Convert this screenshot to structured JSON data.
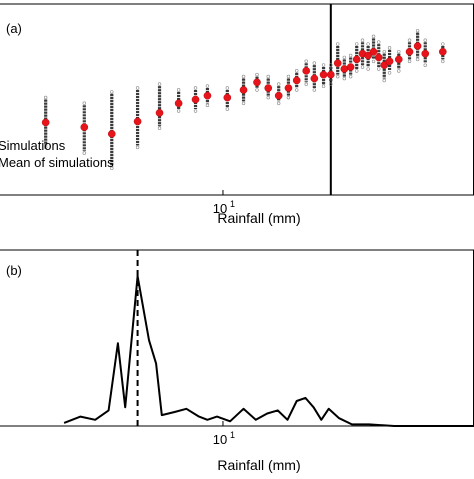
{
  "chart_data": [
    {
      "type": "scatter",
      "panel_label": "(a)",
      "xlabel": "Rainfall (mm)",
      "x_scale": "log",
      "xlim": [
        2.2,
        55
      ],
      "x_ticks": [
        {
          "value": 10,
          "base": "10",
          "exp": "1"
        }
      ],
      "ylim": [
        0,
        1
      ],
      "vline": {
        "x": 20.8,
        "style": "solid"
      },
      "legend": {
        "placement": "left",
        "entries": [
          "Simulations",
          "Mean of simulations"
        ]
      },
      "series": [
        {
          "name": "Mean of simulations",
          "color": "#e8141b",
          "points": [
            {
              "x": 3.0,
              "y": 0.38,
              "lo": 0.26,
              "hi": 0.5
            },
            {
              "x": 3.9,
              "y": 0.355,
              "lo": 0.23,
              "hi": 0.47
            },
            {
              "x": 4.7,
              "y": 0.32,
              "lo": 0.15,
              "hi": 0.53
            },
            {
              "x": 5.6,
              "y": 0.385,
              "lo": 0.26,
              "hi": 0.55
            },
            {
              "x": 6.5,
              "y": 0.43,
              "lo": 0.36,
              "hi": 0.57
            },
            {
              "x": 7.4,
              "y": 0.48,
              "lo": 0.45,
              "hi": 0.54
            },
            {
              "x": 8.3,
              "y": 0.5,
              "lo": 0.45,
              "hi": 0.55
            },
            {
              "x": 9.0,
              "y": 0.52,
              "lo": 0.48,
              "hi": 0.56
            },
            {
              "x": 10.3,
              "y": 0.51,
              "lo": 0.46,
              "hi": 0.55
            },
            {
              "x": 11.5,
              "y": 0.55,
              "lo": 0.49,
              "hi": 0.61
            },
            {
              "x": 12.6,
              "y": 0.59,
              "lo": 0.56,
              "hi": 0.62
            },
            {
              "x": 13.6,
              "y": 0.56,
              "lo": 0.52,
              "hi": 0.61
            },
            {
              "x": 14.6,
              "y": 0.52,
              "lo": 0.49,
              "hi": 0.57
            },
            {
              "x": 15.6,
              "y": 0.56,
              "lo": 0.52,
              "hi": 0.61
            },
            {
              "x": 16.5,
              "y": 0.6,
              "lo": 0.56,
              "hi": 0.64
            },
            {
              "x": 17.6,
              "y": 0.65,
              "lo": 0.59,
              "hi": 0.69
            },
            {
              "x": 18.6,
              "y": 0.61,
              "lo": 0.56,
              "hi": 0.68
            },
            {
              "x": 19.8,
              "y": 0.63,
              "lo": 0.58,
              "hi": 0.67
            },
            {
              "x": 20.8,
              "y": 0.63,
              "lo": 0.59,
              "hi": 0.67
            },
            {
              "x": 21.8,
              "y": 0.69,
              "lo": 0.63,
              "hi": 0.78
            },
            {
              "x": 22.8,
              "y": 0.66,
              "lo": 0.62,
              "hi": 0.71
            },
            {
              "x": 23.8,
              "y": 0.67,
              "lo": 0.63,
              "hi": 0.72
            },
            {
              "x": 24.8,
              "y": 0.71,
              "lo": 0.66,
              "hi": 0.78
            },
            {
              "x": 25.8,
              "y": 0.74,
              "lo": 0.68,
              "hi": 0.8
            },
            {
              "x": 26.8,
              "y": 0.73,
              "lo": 0.67,
              "hi": 0.78
            },
            {
              "x": 27.8,
              "y": 0.75,
              "lo": 0.71,
              "hi": 0.82
            },
            {
              "x": 28.8,
              "y": 0.72,
              "lo": 0.67,
              "hi": 0.79
            },
            {
              "x": 29.9,
              "y": 0.68,
              "lo": 0.61,
              "hi": 0.74
            },
            {
              "x": 31.0,
              "y": 0.7,
              "lo": 0.65,
              "hi": 0.76
            },
            {
              "x": 33.0,
              "y": 0.71,
              "lo": 0.66,
              "hi": 0.74
            },
            {
              "x": 35.5,
              "y": 0.75,
              "lo": 0.71,
              "hi": 0.8
            },
            {
              "x": 37.5,
              "y": 0.78,
              "lo": 0.72,
              "hi": 0.85
            },
            {
              "x": 39.5,
              "y": 0.74,
              "lo": 0.69,
              "hi": 0.8
            },
            {
              "x": 44.5,
              "y": 0.75,
              "lo": 0.71,
              "hi": 0.78
            }
          ]
        }
      ]
    },
    {
      "type": "line",
      "panel_label": "(b)",
      "xlabel": "Rainfall (mm)",
      "x_scale": "log",
      "xlim": [
        2.2,
        55
      ],
      "x_ticks": [
        {
          "value": 10,
          "base": "10",
          "exp": "1"
        }
      ],
      "ylim": [
        0,
        1
      ],
      "vline": {
        "x": 5.6,
        "style": "dashed"
      },
      "series": [
        {
          "color": "#000000",
          "points": [
            {
              "x": 3.4,
              "y": 0.02
            },
            {
              "x": 3.8,
              "y": 0.06
            },
            {
              "x": 4.2,
              "y": 0.04
            },
            {
              "x": 4.6,
              "y": 0.1
            },
            {
              "x": 4.9,
              "y": 0.53
            },
            {
              "x": 5.15,
              "y": 0.12
            },
            {
              "x": 5.6,
              "y": 0.96
            },
            {
              "x": 6.05,
              "y": 0.55
            },
            {
              "x": 6.35,
              "y": 0.4
            },
            {
              "x": 6.6,
              "y": 0.07
            },
            {
              "x": 7.2,
              "y": 0.09
            },
            {
              "x": 7.8,
              "y": 0.11
            },
            {
              "x": 8.5,
              "y": 0.06
            },
            {
              "x": 9.0,
              "y": 0.04
            },
            {
              "x": 9.6,
              "y": 0.06
            },
            {
              "x": 10.5,
              "y": 0.03
            },
            {
              "x": 11.5,
              "y": 0.11
            },
            {
              "x": 12.5,
              "y": 0.04
            },
            {
              "x": 13.5,
              "y": 0.08
            },
            {
              "x": 14.5,
              "y": 0.1
            },
            {
              "x": 15.5,
              "y": 0.04
            },
            {
              "x": 16.5,
              "y": 0.16
            },
            {
              "x": 17.5,
              "y": 0.18
            },
            {
              "x": 18.5,
              "y": 0.12
            },
            {
              "x": 19.5,
              "y": 0.04
            },
            {
              "x": 20.5,
              "y": 0.11
            },
            {
              "x": 22.0,
              "y": 0.05
            },
            {
              "x": 24.0,
              "y": 0.01
            },
            {
              "x": 27.0,
              "y": 0.01
            },
            {
              "x": 32.0,
              "y": 0.0
            },
            {
              "x": 40.0,
              "y": 0.0
            },
            {
              "x": 55.0,
              "y": 0.0
            }
          ]
        }
      ]
    }
  ]
}
